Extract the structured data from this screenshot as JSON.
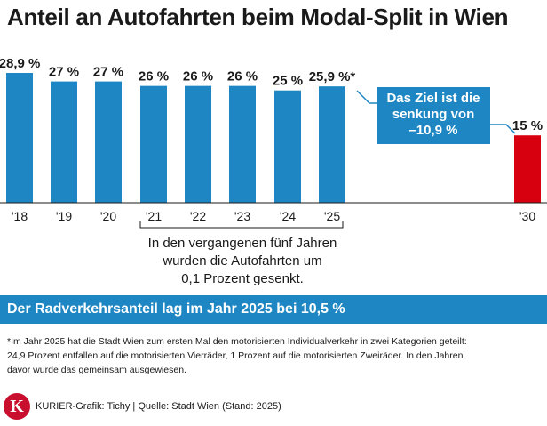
{
  "title": "Anteil an Autofahrten beim Modal-Split in Wien",
  "callout": "Das Ziel ist die\nsenkung von\n–10,9 %",
  "bracket_note": "In den vergangenen fünf Jahren\nwurden die Autofahrten um\n0,1 Prozent gesenkt.",
  "banner": "Der Radverkehrsanteil lag im Jahr 2025 bei 10,5 %",
  "footnote": "*Im Jahr 2025 hat die Stadt Wien zum ersten Mal den motorisierten Individualverkehr in zwei Kategorien geteilt:\n24,9 Prozent entfallen auf die motorisierten Vierräder, 1 Prozent auf die motorisierten Zweiräder. In den Jahren\ndavor wurde das gemeinsam ausgewiesen.",
  "logo_letter": "K",
  "source": "KURIER-Grafik: Tichy | Quelle: Stadt Wien (Stand: 2025)",
  "colors": {
    "bar": "#1e87c3",
    "target_bar": "#d7000f",
    "banner": "#1e87c3"
  },
  "chart_data": {
    "type": "bar",
    "categories": [
      "'18",
      "'19",
      "'20",
      "'21",
      "'22",
      "'23",
      "'24",
      "'25",
      "'30"
    ],
    "values": [
      28.9,
      27,
      27,
      26,
      26,
      26,
      25,
      25.9,
      15
    ],
    "value_labels": [
      "28,9 %",
      "27 %",
      "27 %",
      "26 %",
      "26 %",
      "26 %",
      "25 %",
      "25,9 %*",
      "15 %"
    ],
    "highlight": {
      "'30": "target"
    },
    "ylim": [
      0,
      28.9
    ],
    "grid": false,
    "axis_labels_shown": false
  }
}
